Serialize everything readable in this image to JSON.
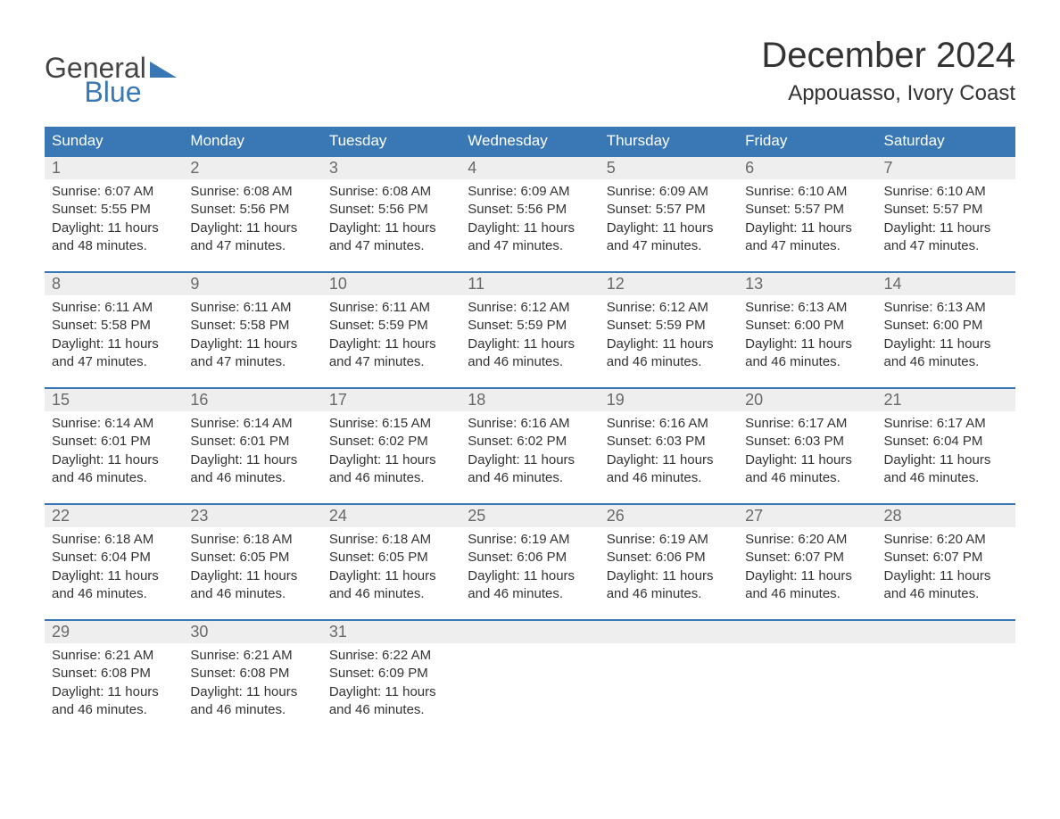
{
  "brand": {
    "word1": "General",
    "word2": "Blue",
    "accent_color": "#3a78b5"
  },
  "title": "December 2024",
  "location": "Appouasso, Ivory Coast",
  "colors": {
    "header_bg": "#3a78b5",
    "header_text": "#ffffff",
    "daynum_bg": "#eeeeee",
    "daynum_text": "#696969",
    "text": "#333333",
    "row_border": "#3a78b5",
    "page_bg": "#ffffff"
  },
  "typography": {
    "title_fontsize": 40,
    "location_fontsize": 24,
    "dow_fontsize": 17,
    "daynum_fontsize": 18,
    "detail_fontsize": 15
  },
  "layout": {
    "columns": 7,
    "rows": 5
  },
  "days_of_week": [
    "Sunday",
    "Monday",
    "Tuesday",
    "Wednesday",
    "Thursday",
    "Friday",
    "Saturday"
  ],
  "weeks": [
    [
      {
        "n": "1",
        "sunrise": "Sunrise: 6:07 AM",
        "sunset": "Sunset: 5:55 PM",
        "dl1": "Daylight: 11 hours",
        "dl2": "and 48 minutes."
      },
      {
        "n": "2",
        "sunrise": "Sunrise: 6:08 AM",
        "sunset": "Sunset: 5:56 PM",
        "dl1": "Daylight: 11 hours",
        "dl2": "and 47 minutes."
      },
      {
        "n": "3",
        "sunrise": "Sunrise: 6:08 AM",
        "sunset": "Sunset: 5:56 PM",
        "dl1": "Daylight: 11 hours",
        "dl2": "and 47 minutes."
      },
      {
        "n": "4",
        "sunrise": "Sunrise: 6:09 AM",
        "sunset": "Sunset: 5:56 PM",
        "dl1": "Daylight: 11 hours",
        "dl2": "and 47 minutes."
      },
      {
        "n": "5",
        "sunrise": "Sunrise: 6:09 AM",
        "sunset": "Sunset: 5:57 PM",
        "dl1": "Daylight: 11 hours",
        "dl2": "and 47 minutes."
      },
      {
        "n": "6",
        "sunrise": "Sunrise: 6:10 AM",
        "sunset": "Sunset: 5:57 PM",
        "dl1": "Daylight: 11 hours",
        "dl2": "and 47 minutes."
      },
      {
        "n": "7",
        "sunrise": "Sunrise: 6:10 AM",
        "sunset": "Sunset: 5:57 PM",
        "dl1": "Daylight: 11 hours",
        "dl2": "and 47 minutes."
      }
    ],
    [
      {
        "n": "8",
        "sunrise": "Sunrise: 6:11 AM",
        "sunset": "Sunset: 5:58 PM",
        "dl1": "Daylight: 11 hours",
        "dl2": "and 47 minutes."
      },
      {
        "n": "9",
        "sunrise": "Sunrise: 6:11 AM",
        "sunset": "Sunset: 5:58 PM",
        "dl1": "Daylight: 11 hours",
        "dl2": "and 47 minutes."
      },
      {
        "n": "10",
        "sunrise": "Sunrise: 6:11 AM",
        "sunset": "Sunset: 5:59 PM",
        "dl1": "Daylight: 11 hours",
        "dl2": "and 47 minutes."
      },
      {
        "n": "11",
        "sunrise": "Sunrise: 6:12 AM",
        "sunset": "Sunset: 5:59 PM",
        "dl1": "Daylight: 11 hours",
        "dl2": "and 46 minutes."
      },
      {
        "n": "12",
        "sunrise": "Sunrise: 6:12 AM",
        "sunset": "Sunset: 5:59 PM",
        "dl1": "Daylight: 11 hours",
        "dl2": "and 46 minutes."
      },
      {
        "n": "13",
        "sunrise": "Sunrise: 6:13 AM",
        "sunset": "Sunset: 6:00 PM",
        "dl1": "Daylight: 11 hours",
        "dl2": "and 46 minutes."
      },
      {
        "n": "14",
        "sunrise": "Sunrise: 6:13 AM",
        "sunset": "Sunset: 6:00 PM",
        "dl1": "Daylight: 11 hours",
        "dl2": "and 46 minutes."
      }
    ],
    [
      {
        "n": "15",
        "sunrise": "Sunrise: 6:14 AM",
        "sunset": "Sunset: 6:01 PM",
        "dl1": "Daylight: 11 hours",
        "dl2": "and 46 minutes."
      },
      {
        "n": "16",
        "sunrise": "Sunrise: 6:14 AM",
        "sunset": "Sunset: 6:01 PM",
        "dl1": "Daylight: 11 hours",
        "dl2": "and 46 minutes."
      },
      {
        "n": "17",
        "sunrise": "Sunrise: 6:15 AM",
        "sunset": "Sunset: 6:02 PM",
        "dl1": "Daylight: 11 hours",
        "dl2": "and 46 minutes."
      },
      {
        "n": "18",
        "sunrise": "Sunrise: 6:16 AM",
        "sunset": "Sunset: 6:02 PM",
        "dl1": "Daylight: 11 hours",
        "dl2": "and 46 minutes."
      },
      {
        "n": "19",
        "sunrise": "Sunrise: 6:16 AM",
        "sunset": "Sunset: 6:03 PM",
        "dl1": "Daylight: 11 hours",
        "dl2": "and 46 minutes."
      },
      {
        "n": "20",
        "sunrise": "Sunrise: 6:17 AM",
        "sunset": "Sunset: 6:03 PM",
        "dl1": "Daylight: 11 hours",
        "dl2": "and 46 minutes."
      },
      {
        "n": "21",
        "sunrise": "Sunrise: 6:17 AM",
        "sunset": "Sunset: 6:04 PM",
        "dl1": "Daylight: 11 hours",
        "dl2": "and 46 minutes."
      }
    ],
    [
      {
        "n": "22",
        "sunrise": "Sunrise: 6:18 AM",
        "sunset": "Sunset: 6:04 PM",
        "dl1": "Daylight: 11 hours",
        "dl2": "and 46 minutes."
      },
      {
        "n": "23",
        "sunrise": "Sunrise: 6:18 AM",
        "sunset": "Sunset: 6:05 PM",
        "dl1": "Daylight: 11 hours",
        "dl2": "and 46 minutes."
      },
      {
        "n": "24",
        "sunrise": "Sunrise: 6:18 AM",
        "sunset": "Sunset: 6:05 PM",
        "dl1": "Daylight: 11 hours",
        "dl2": "and 46 minutes."
      },
      {
        "n": "25",
        "sunrise": "Sunrise: 6:19 AM",
        "sunset": "Sunset: 6:06 PM",
        "dl1": "Daylight: 11 hours",
        "dl2": "and 46 minutes."
      },
      {
        "n": "26",
        "sunrise": "Sunrise: 6:19 AM",
        "sunset": "Sunset: 6:06 PM",
        "dl1": "Daylight: 11 hours",
        "dl2": "and 46 minutes."
      },
      {
        "n": "27",
        "sunrise": "Sunrise: 6:20 AM",
        "sunset": "Sunset: 6:07 PM",
        "dl1": "Daylight: 11 hours",
        "dl2": "and 46 minutes."
      },
      {
        "n": "28",
        "sunrise": "Sunrise: 6:20 AM",
        "sunset": "Sunset: 6:07 PM",
        "dl1": "Daylight: 11 hours",
        "dl2": "and 46 minutes."
      }
    ],
    [
      {
        "n": "29",
        "sunrise": "Sunrise: 6:21 AM",
        "sunset": "Sunset: 6:08 PM",
        "dl1": "Daylight: 11 hours",
        "dl2": "and 46 minutes."
      },
      {
        "n": "30",
        "sunrise": "Sunrise: 6:21 AM",
        "sunset": "Sunset: 6:08 PM",
        "dl1": "Daylight: 11 hours",
        "dl2": "and 46 minutes."
      },
      {
        "n": "31",
        "sunrise": "Sunrise: 6:22 AM",
        "sunset": "Sunset: 6:09 PM",
        "dl1": "Daylight: 11 hours",
        "dl2": "and 46 minutes."
      },
      null,
      null,
      null,
      null
    ]
  ]
}
